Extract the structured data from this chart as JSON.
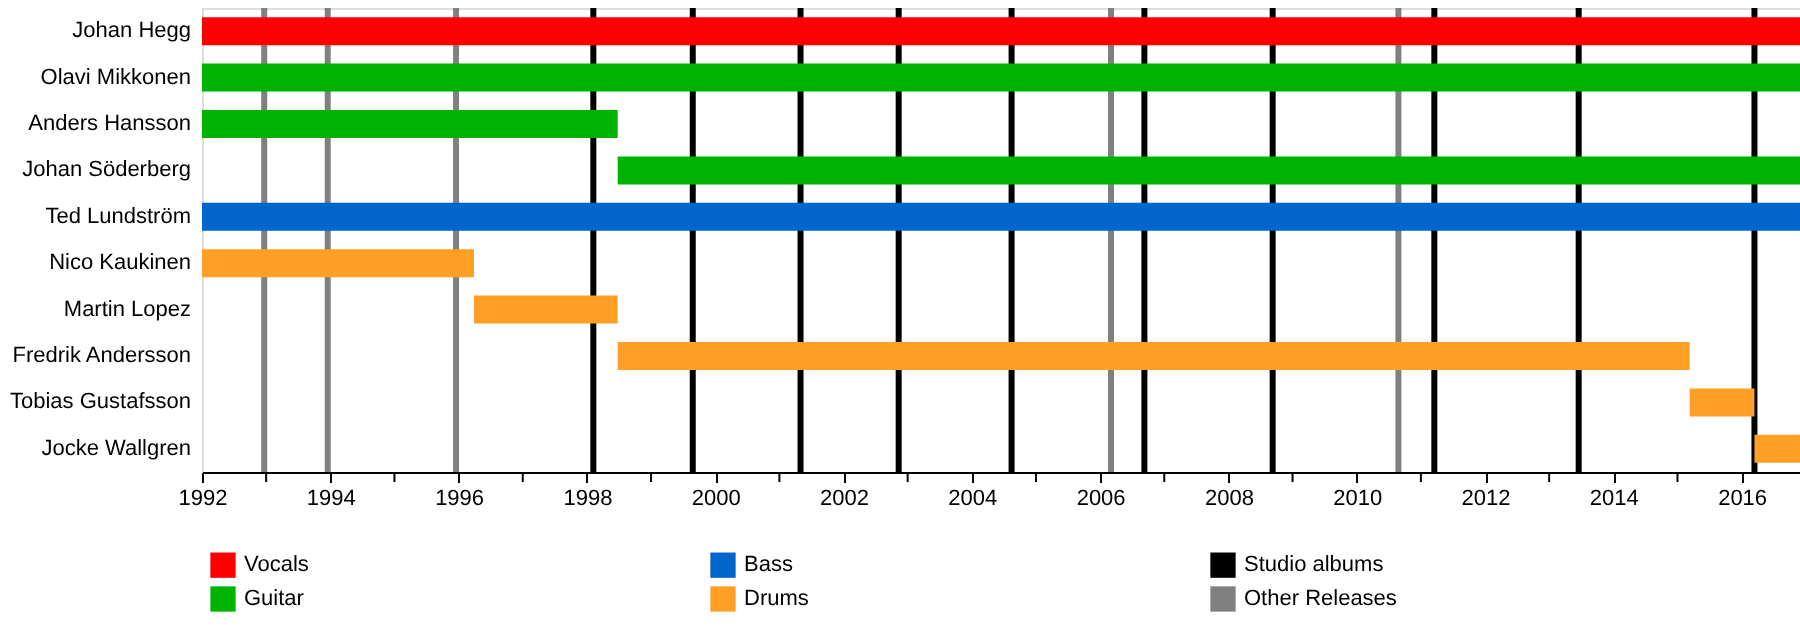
{
  "chart_data": {
    "type": "bar",
    "orientation": "horizontal",
    "categories": [
      "Johan Hegg",
      "Olavi Mikkonen",
      "Anders Hansson",
      "Johan Söderberg",
      "Ted Lundström",
      "Nico Kaukinen",
      "Martin Lopez",
      "Fredrik Andersson",
      "Tobias Gustafsson",
      "Jocke Wallgren"
    ],
    "series": [
      {
        "name": "Vocals",
        "color": "#ff0000",
        "base": [
          1992,
          null,
          null,
          null,
          null,
          null,
          null,
          null,
          null,
          null
        ],
        "values": [
          24.91,
          null,
          null,
          null,
          null,
          null,
          null,
          null,
          null,
          null
        ]
      },
      {
        "name": "Guitar",
        "color": "#00b300",
        "base": [
          null,
          1992,
          1992,
          1998.48,
          null,
          null,
          null,
          null,
          null,
          null
        ],
        "values": [
          null,
          24.91,
          6.48,
          18.43,
          null,
          null,
          null,
          null,
          null,
          null
        ]
      },
      {
        "name": "Bass",
        "color": "#0066cc",
        "base": [
          null,
          null,
          null,
          null,
          1992,
          null,
          null,
          null,
          null,
          null
        ],
        "values": [
          null,
          null,
          null,
          null,
          24.91,
          null,
          null,
          null,
          null,
          null
        ]
      },
      {
        "name": "Drums",
        "color": "#ff9f26",
        "base": [
          null,
          null,
          null,
          null,
          null,
          1992,
          1996.24,
          1998.48,
          2015.19,
          2016.2
        ],
        "values": [
          null,
          null,
          null,
          null,
          null,
          4.24,
          2.24,
          16.71,
          1.01,
          0.71
        ]
      }
    ],
    "xlim": [
      1992,
      2016.91
    ],
    "xticks": [
      1992,
      {
        "value": 1993,
        "label": null
      },
      1994,
      {
        "value": 1995,
        "label": null
      },
      1996,
      {
        "value": 1997,
        "label": null
      },
      1998,
      {
        "value": 1999,
        "label": null
      },
      2000,
      {
        "value": 2001,
        "label": null
      },
      2002,
      {
        "value": 2003,
        "label": null
      },
      2004,
      {
        "value": 2005,
        "label": null
      },
      2006,
      {
        "value": 2007,
        "label": null
      },
      2008,
      {
        "value": 2009,
        "label": null
      },
      2010,
      {
        "value": 2011,
        "label": null
      },
      2012,
      {
        "value": 2013,
        "label": null
      },
      2014,
      {
        "value": 2015,
        "label": null
      },
      2016
    ],
    "ref_lines": [
      {
        "axis": "x",
        "value": 1998.1,
        "label": "Studio albums",
        "color": "#000000"
      },
      {
        "axis": "x",
        "value": 1999.65,
        "color": "#000000"
      },
      {
        "axis": "x",
        "value": 2001.33,
        "color": "#000000"
      },
      {
        "axis": "x",
        "value": 2002.86,
        "color": "#000000"
      },
      {
        "axis": "x",
        "value": 2004.62,
        "color": "#000000"
      },
      {
        "axis": "x",
        "value": 2006.69,
        "color": "#000000"
      },
      {
        "axis": "x",
        "value": 2008.69,
        "color": "#000000"
      },
      {
        "axis": "x",
        "value": 2011.21,
        "color": "#000000"
      },
      {
        "axis": "x",
        "value": 2013.46,
        "color": "#000000"
      },
      {
        "axis": "x",
        "value": 2016.2,
        "color": "#000000"
      },
      {
        "axis": "x",
        "value": 1992.97,
        "label": "Other Releases",
        "color": "#808080"
      },
      {
        "axis": "x",
        "value": 1993.96,
        "color": "#808080"
      },
      {
        "axis": "x",
        "value": 1995.96,
        "color": "#808080"
      },
      {
        "axis": "x",
        "value": 2006.17,
        "color": "#808080"
      },
      {
        "axis": "x",
        "value": 2010.65,
        "color": "#808080"
      }
    ],
    "grid": false,
    "legend": "bottom"
  }
}
